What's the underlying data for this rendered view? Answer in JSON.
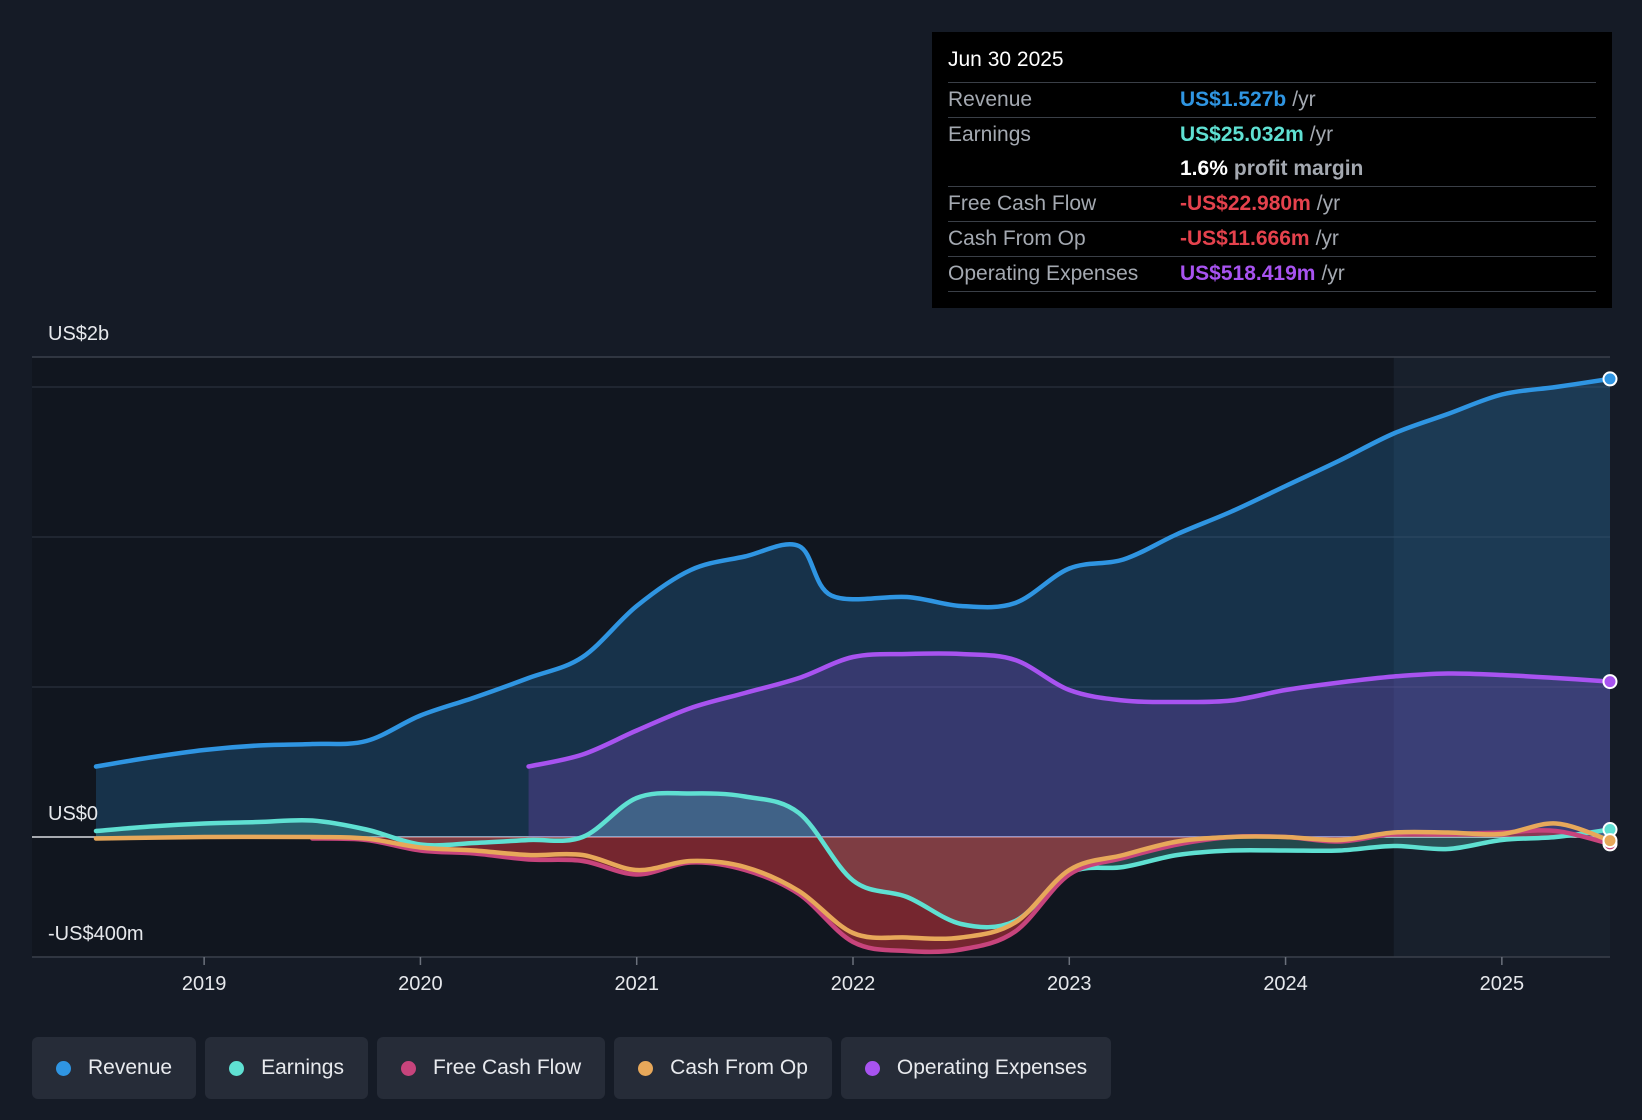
{
  "tooltip": {
    "date": "Jun 30 2025",
    "rows": [
      {
        "label": "Revenue",
        "value": "US$1.527b",
        "unit": "/yr",
        "color": "#2f95e2"
      },
      {
        "label": "Earnings",
        "value": "US$25.032m",
        "unit": "/yr",
        "color": "#5fe0d2"
      },
      {
        "label": "",
        "value": "1.6%",
        "unit": "profit margin",
        "color": "#ffffff"
      },
      {
        "label": "Free Cash Flow",
        "value": "-US$22.980m",
        "unit": "/yr",
        "color": "#e5424d"
      },
      {
        "label": "Cash From Op",
        "value": "-US$11.666m",
        "unit": "/yr",
        "color": "#e5424d"
      },
      {
        "label": "Operating Expenses",
        "value": "US$518.419m",
        "unit": "/yr",
        "color": "#a853f0"
      }
    ]
  },
  "legend": [
    {
      "label": "Revenue",
      "color": "#2f95e2"
    },
    {
      "label": "Earnings",
      "color": "#5fe0d2"
    },
    {
      "label": "Free Cash Flow",
      "color": "#c7447c"
    },
    {
      "label": "Cash From Op",
      "color": "#e7a85a"
    },
    {
      "label": "Operating Expenses",
      "color": "#a853f0"
    }
  ],
  "chart_data": {
    "type": "area",
    "y_labels": {
      "top": "US$2b",
      "zero": "US$0",
      "bottom": "-US$400m"
    },
    "ylim": [
      -400,
      1600
    ],
    "xlim": [
      2018.5,
      2025.5
    ],
    "x_ticks": [
      2019,
      2020,
      2021,
      2022,
      2023,
      2024,
      2025
    ],
    "x_tick_labels": [
      "2019",
      "2020",
      "2021",
      "2022",
      "2023",
      "2024",
      "2025"
    ],
    "gridlines": [
      1500,
      1000,
      500,
      0
    ],
    "highlight_from": 2024.5,
    "series": [
      {
        "name": "Revenue",
        "color": "#2f95e2",
        "fill": true,
        "points": [
          [
            2018.5,
            235
          ],
          [
            2018.75,
            265
          ],
          [
            2019.0,
            290
          ],
          [
            2019.25,
            305
          ],
          [
            2019.5,
            310
          ],
          [
            2019.75,
            320
          ],
          [
            2020.0,
            405
          ],
          [
            2020.25,
            465
          ],
          [
            2020.5,
            530
          ],
          [
            2020.75,
            600
          ],
          [
            2021.0,
            770
          ],
          [
            2021.25,
            890
          ],
          [
            2021.5,
            935
          ],
          [
            2021.75,
            970
          ],
          [
            2021.9,
            805
          ],
          [
            2022.25,
            800
          ],
          [
            2022.5,
            770
          ],
          [
            2022.75,
            780
          ],
          [
            2023.0,
            895
          ],
          [
            2023.25,
            925
          ],
          [
            2023.5,
            1010
          ],
          [
            2023.75,
            1085
          ],
          [
            2024.0,
            1170
          ],
          [
            2024.25,
            1255
          ],
          [
            2024.5,
            1345
          ],
          [
            2024.75,
            1410
          ],
          [
            2025.0,
            1475
          ],
          [
            2025.25,
            1500
          ],
          [
            2025.5,
            1527
          ]
        ]
      },
      {
        "name": "Operating Expenses",
        "color": "#a853f0",
        "fill": true,
        "points": [
          [
            2020.5,
            235
          ],
          [
            2020.75,
            275
          ],
          [
            2021.0,
            355
          ],
          [
            2021.25,
            430
          ],
          [
            2021.5,
            480
          ],
          [
            2021.75,
            530
          ],
          [
            2022.0,
            600
          ],
          [
            2022.25,
            610
          ],
          [
            2022.5,
            610
          ],
          [
            2022.75,
            590
          ],
          [
            2023.0,
            490
          ],
          [
            2023.25,
            455
          ],
          [
            2023.5,
            450
          ],
          [
            2023.75,
            455
          ],
          [
            2024.0,
            490
          ],
          [
            2024.25,
            515
          ],
          [
            2024.5,
            535
          ],
          [
            2024.75,
            545
          ],
          [
            2025.0,
            540
          ],
          [
            2025.25,
            530
          ],
          [
            2025.5,
            518
          ]
        ]
      },
      {
        "name": "Earnings",
        "color": "#5fe0d2",
        "fill": true,
        "points": [
          [
            2018.5,
            20
          ],
          [
            2018.75,
            35
          ],
          [
            2019.0,
            45
          ],
          [
            2019.25,
            50
          ],
          [
            2019.5,
            55
          ],
          [
            2019.75,
            25
          ],
          [
            2020.0,
            -25
          ],
          [
            2020.25,
            -20
          ],
          [
            2020.5,
            -10
          ],
          [
            2020.75,
            0
          ],
          [
            2021.0,
            130
          ],
          [
            2021.25,
            145
          ],
          [
            2021.5,
            135
          ],
          [
            2021.75,
            80
          ],
          [
            2022.0,
            -145
          ],
          [
            2022.25,
            -200
          ],
          [
            2022.5,
            -290
          ],
          [
            2022.75,
            -280
          ],
          [
            2023.0,
            -120
          ],
          [
            2023.25,
            -100
          ],
          [
            2023.5,
            -60
          ],
          [
            2023.75,
            -45
          ],
          [
            2024.0,
            -45
          ],
          [
            2024.25,
            -45
          ],
          [
            2024.5,
            -30
          ],
          [
            2024.75,
            -40
          ],
          [
            2025.0,
            -10
          ],
          [
            2025.25,
            0
          ],
          [
            2025.5,
            25
          ]
        ]
      },
      {
        "name": "Free Cash Flow",
        "color": "#c7447c",
        "fill": true,
        "points": [
          [
            2019.5,
            -5
          ],
          [
            2019.75,
            -10
          ],
          [
            2020.0,
            -45
          ],
          [
            2020.25,
            -55
          ],
          [
            2020.5,
            -75
          ],
          [
            2020.75,
            -80
          ],
          [
            2021.0,
            -125
          ],
          [
            2021.25,
            -85
          ],
          [
            2021.5,
            -110
          ],
          [
            2021.75,
            -190
          ],
          [
            2022.0,
            -350
          ],
          [
            2022.25,
            -380
          ],
          [
            2022.5,
            -375
          ],
          [
            2022.75,
            -315
          ],
          [
            2023.0,
            -125
          ],
          [
            2023.25,
            -70
          ],
          [
            2023.5,
            -25
          ],
          [
            2023.75,
            0
          ],
          [
            2024.0,
            0
          ],
          [
            2024.25,
            -15
          ],
          [
            2024.5,
            10
          ],
          [
            2024.75,
            10
          ],
          [
            2025.0,
            15
          ],
          [
            2025.25,
            20
          ],
          [
            2025.5,
            -23
          ]
        ]
      },
      {
        "name": "Cash From Op",
        "color": "#e7a85a",
        "fill": false,
        "points": [
          [
            2018.5,
            -5
          ],
          [
            2019.0,
            0
          ],
          [
            2019.5,
            0
          ],
          [
            2019.75,
            -5
          ],
          [
            2020.0,
            -35
          ],
          [
            2020.25,
            -45
          ],
          [
            2020.5,
            -60
          ],
          [
            2020.75,
            -60
          ],
          [
            2021.0,
            -110
          ],
          [
            2021.25,
            -80
          ],
          [
            2021.5,
            -100
          ],
          [
            2021.75,
            -180
          ],
          [
            2022.0,
            -320
          ],
          [
            2022.25,
            -335
          ],
          [
            2022.5,
            -335
          ],
          [
            2022.75,
            -285
          ],
          [
            2023.0,
            -110
          ],
          [
            2023.25,
            -60
          ],
          [
            2023.5,
            -15
          ],
          [
            2023.75,
            0
          ],
          [
            2024.0,
            0
          ],
          [
            2024.25,
            -10
          ],
          [
            2024.5,
            15
          ],
          [
            2024.75,
            15
          ],
          [
            2025.0,
            10
          ],
          [
            2025.25,
            45
          ],
          [
            2025.5,
            -12
          ]
        ]
      }
    ]
  }
}
